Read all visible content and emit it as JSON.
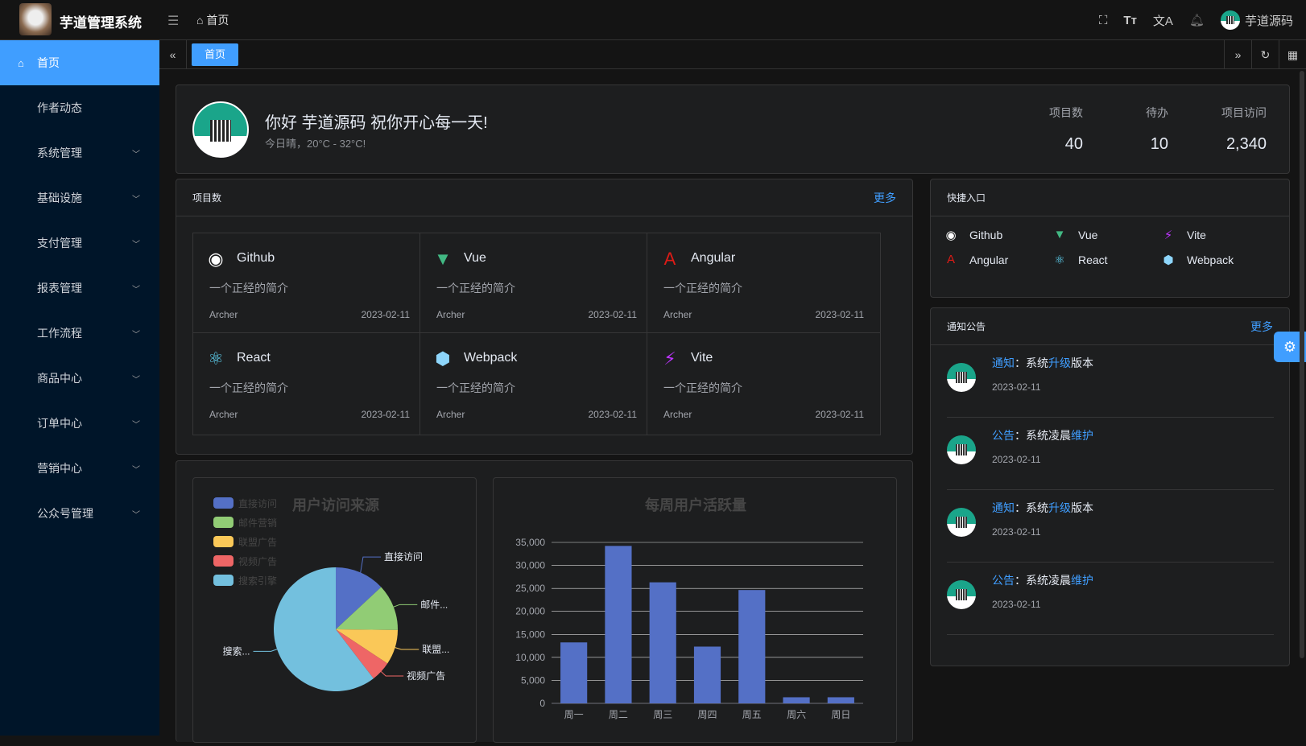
{
  "header": {
    "app_title": "芋道管理系统",
    "breadcrumb": "首页",
    "username": "芋道源码"
  },
  "sidebar": {
    "items": [
      {
        "label": "首页",
        "active": true,
        "icon": "home-icon"
      },
      {
        "label": "作者动态"
      },
      {
        "label": "系统管理",
        "sub": true
      },
      {
        "label": "基础设施",
        "sub": true
      },
      {
        "label": "支付管理",
        "sub": true
      },
      {
        "label": "报表管理",
        "sub": true
      },
      {
        "label": "工作流程",
        "sub": true
      },
      {
        "label": "商品中心",
        "sub": true
      },
      {
        "label": "订单中心",
        "sub": true
      },
      {
        "label": "营销中心",
        "sub": true
      },
      {
        "label": "公众号管理",
        "sub": true
      }
    ]
  },
  "tabs": {
    "active": "首页"
  },
  "welcome": {
    "greeting": "你好 芋道源码 祝你开心每一天!",
    "weather": "今日晴，20°C - 32°C!",
    "stats": [
      {
        "label": "项目数",
        "value": "40"
      },
      {
        "label": "待办",
        "value": "10"
      },
      {
        "label": "项目访问",
        "value": "2,340"
      }
    ]
  },
  "projects": {
    "title": "项目数",
    "more": "更多",
    "items": [
      {
        "name": "Github",
        "icon": "github-icon",
        "color": "#ffffff",
        "desc": "一个正经的简介",
        "author": "Archer",
        "date": "2023-02-11"
      },
      {
        "name": "Vue",
        "icon": "vue-icon",
        "color": "#42b883",
        "desc": "一个正经的简介",
        "author": "Archer",
        "date": "2023-02-11"
      },
      {
        "name": "Angular",
        "icon": "angular-icon",
        "color": "#dd1b16",
        "desc": "一个正经的简介",
        "author": "Archer",
        "date": "2023-02-11"
      },
      {
        "name": "React",
        "icon": "react-icon",
        "color": "#61dafb",
        "desc": "一个正经的简介",
        "author": "Archer",
        "date": "2023-02-11"
      },
      {
        "name": "Webpack",
        "icon": "webpack-icon",
        "color": "#8ed6fb",
        "desc": "一个正经的简介",
        "author": "Archer",
        "date": "2023-02-11"
      },
      {
        "name": "Vite",
        "icon": "vite-icon",
        "color": "#bd34fe",
        "desc": "一个正经的简介",
        "author": "Archer",
        "date": "2023-02-11"
      }
    ]
  },
  "shortcuts": {
    "title": "快捷入口",
    "items": [
      {
        "name": "Github",
        "icon": "github-icon",
        "color": "#ffffff"
      },
      {
        "name": "Vue",
        "icon": "vue-icon",
        "color": "#42b883"
      },
      {
        "name": "Vite",
        "icon": "vite-icon",
        "color": "#bd34fe"
      },
      {
        "name": "Angular",
        "icon": "angular-icon",
        "color": "#dd1b16"
      },
      {
        "name": "React",
        "icon": "react-icon",
        "color": "#61dafb"
      },
      {
        "name": "Webpack",
        "icon": "webpack-icon",
        "color": "#8ed6fb"
      }
    ]
  },
  "notices": {
    "title": "通知公告",
    "more": "更多",
    "items": [
      {
        "type": "通知",
        "sep": "：",
        "parts": [
          "系统",
          "升级",
          "版本"
        ],
        "date": "2023-02-11"
      },
      {
        "type": "公告",
        "sep": "：",
        "parts": [
          "系统凌晨",
          "维护",
          ""
        ],
        "date": "2023-02-11"
      },
      {
        "type": "通知",
        "sep": "：",
        "parts": [
          "系统",
          "升级",
          "版本"
        ],
        "date": "2023-02-11"
      },
      {
        "type": "公告",
        "sep": "：",
        "parts": [
          "系统凌晨",
          "维护",
          ""
        ],
        "date": "2023-02-11"
      }
    ]
  },
  "chart_data": [
    {
      "type": "pie",
      "title": "用户访问来源",
      "legend_position": "top-left",
      "categories": [
        "直接访问",
        "邮件营销",
        "联盟广告",
        "视频广告",
        "搜索引擎"
      ],
      "values": [
        335,
        310,
        234,
        135,
        1548
      ],
      "colors": [
        "#5470c6",
        "#91cc75",
        "#fac858",
        "#ee6666",
        "#73c0de"
      ],
      "slice_labels": [
        "直接访问",
        "邮件...",
        "联盟...",
        "视频广告",
        "搜索..."
      ]
    },
    {
      "type": "bar",
      "title": "每周用户活跃量",
      "categories": [
        "周一",
        "周二",
        "周三",
        "周四",
        "周五",
        "周六",
        "周日"
      ],
      "values": [
        13253,
        34235,
        26321,
        12340,
        24643,
        1322,
        1324
      ],
      "ylim": [
        0,
        35000
      ],
      "yticks": [
        "0",
        "5,000",
        "10,000",
        "15,000",
        "20,000",
        "25,000",
        "30,000",
        "35,000"
      ],
      "grid": true,
      "color": "#5470c6"
    }
  ]
}
